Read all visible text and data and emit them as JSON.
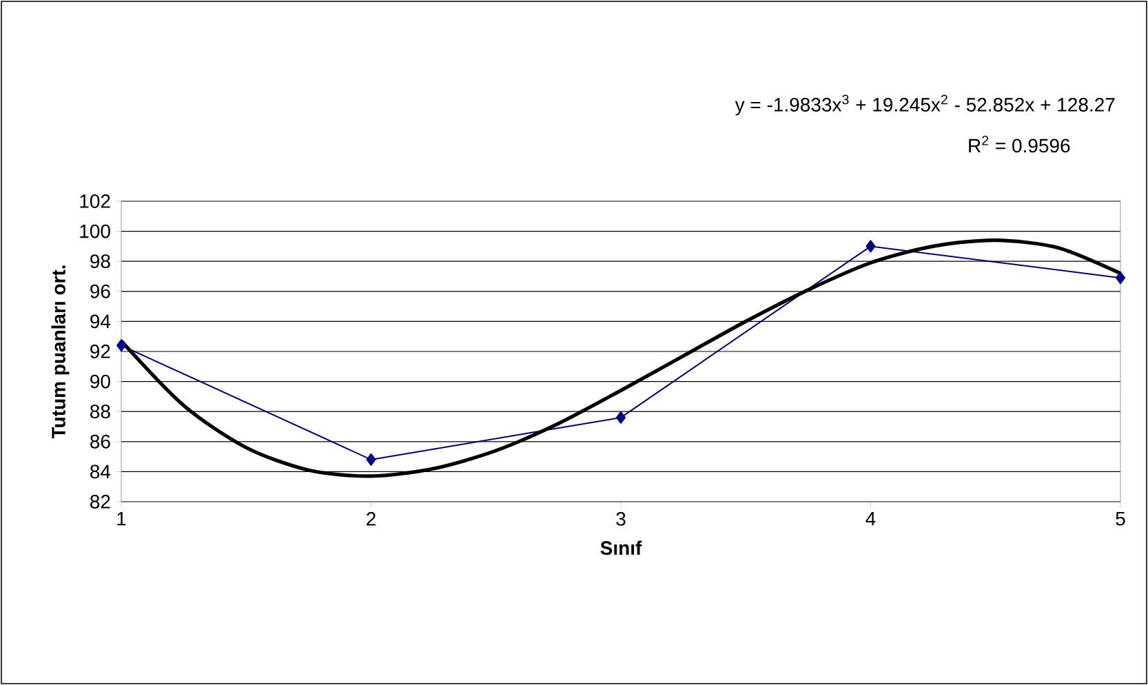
{
  "chart_data": {
    "type": "line",
    "xlabel": "Sınıf",
    "ylabel": "Tutum puanları ort.",
    "annotations": [
      "y = -1.9833x$^{3}$ + 19.245x$^{2}$ - 52.852x + 128.27",
      "R$^{2}$ = 0.9596"
    ],
    "x": [
      1,
      2,
      3,
      4,
      5
    ],
    "series": [
      {
        "color": "#000080",
        "marker": "diamond",
        "values": [
          92.4,
          84.8,
          87.6,
          99.0,
          96.9
        ]
      },
      {
        "type": "line",
        "color": "#000000",
        "marker": "none",
        "x": [
          1,
          1.25,
          1.5,
          1.75,
          2,
          2.25,
          2.5,
          2.75,
          3,
          3.25,
          3.5,
          3.75,
          4,
          4.25,
          4.5,
          4.75,
          5
        ],
        "values": [
          92.7,
          88.4,
          85.6,
          84.1,
          83.7,
          84.2,
          85.4,
          87.2,
          89.4,
          91.7,
          94.0,
          96.1,
          97.9,
          99.0,
          99.4,
          98.9,
          97.2
        ]
      }
    ],
    "xlim": [
      1,
      5
    ],
    "ylim": [
      82,
      102
    ],
    "xticks": [
      1,
      2,
      3,
      4,
      5
    ],
    "yticks": [
      82,
      84,
      86,
      88,
      90,
      92,
      94,
      96,
      98,
      100,
      102
    ],
    "grid": "y"
  }
}
